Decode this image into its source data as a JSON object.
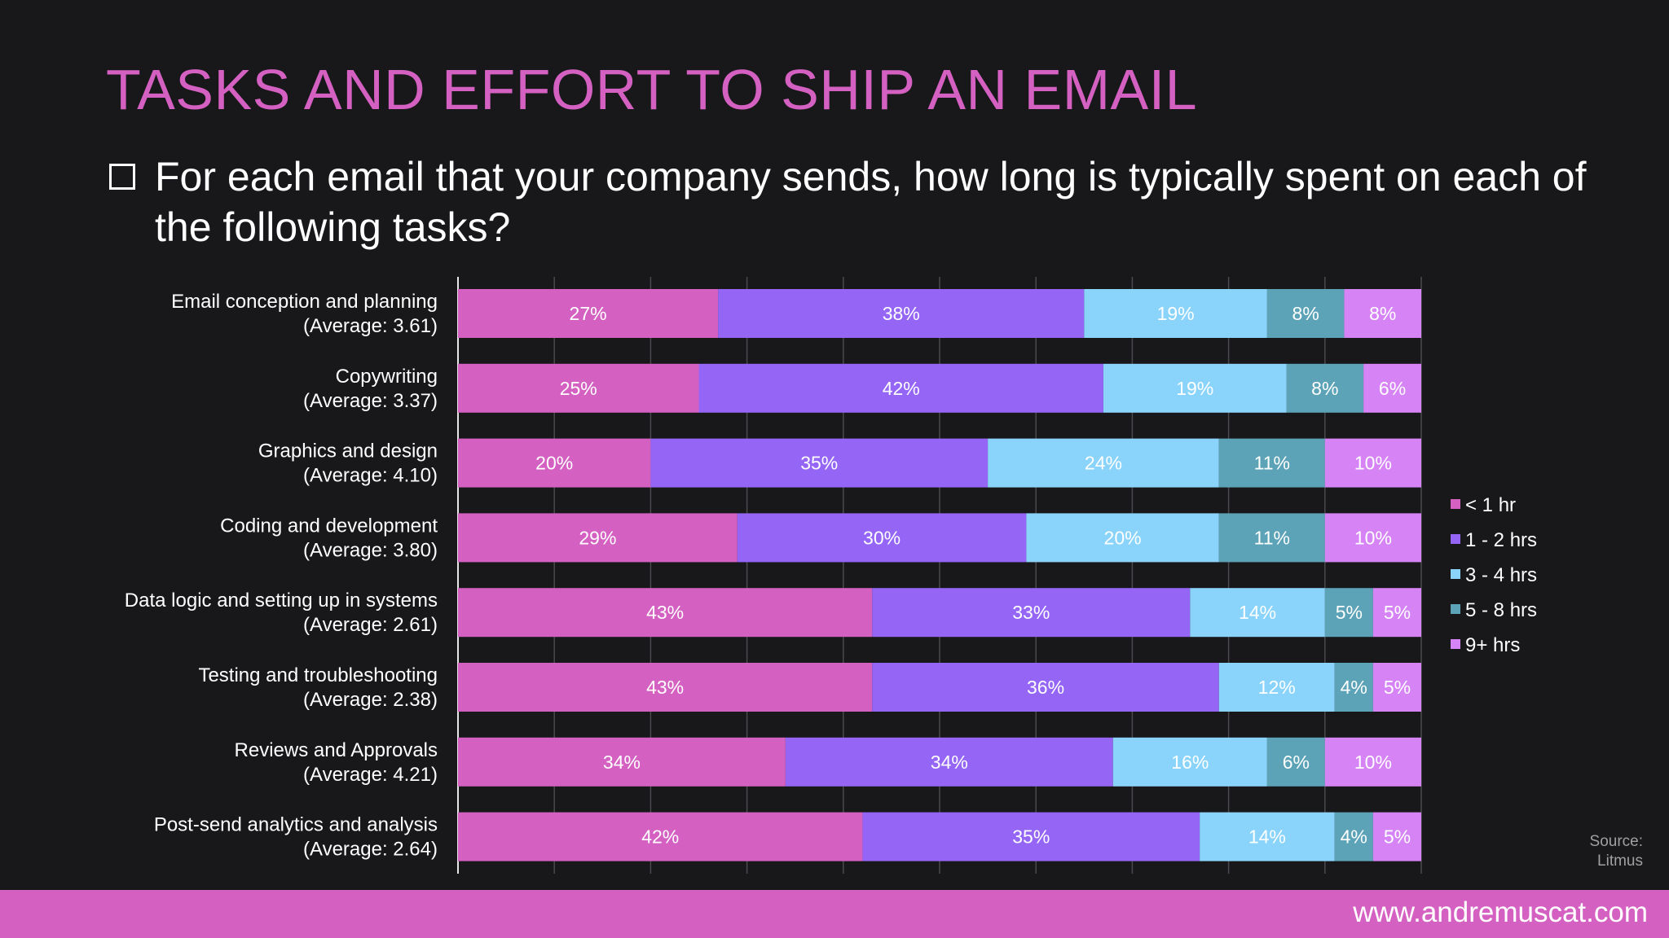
{
  "title": "TASKS AND EFFORT TO SHIP AN EMAIL",
  "subtitle": "For each email that your company sends, how long is typically spent on each of the following tasks?",
  "source": "Source:\nLitmus",
  "footer_url": "www.andremuscat.com",
  "chart_data": {
    "type": "bar",
    "orientation": "horizontal",
    "stacked": true,
    "categories": [
      [
        "Email conception and planning",
        "(Average: 3.61)"
      ],
      [
        "Copywriting",
        "(Average: 3.37)"
      ],
      [
        "Graphics and design",
        "(Average: 4.10)"
      ],
      [
        "Coding and development",
        "(Average: 3.80)"
      ],
      [
        "Data logic and setting up in systems",
        "(Average: 2.61)"
      ],
      [
        "Testing and troubleshooting",
        "(Average: 2.38)"
      ],
      [
        "Reviews and Approvals",
        "(Average: 4.21)"
      ],
      [
        "Post-send analytics and analysis",
        "(Average: 2.64)"
      ]
    ],
    "series": [
      {
        "name": "< 1 hr",
        "color": "#d461c2",
        "values": [
          27,
          25,
          20,
          29,
          43,
          43,
          34,
          42
        ]
      },
      {
        "name": "1 - 2 hrs",
        "color": "#9566f5",
        "values": [
          38,
          42,
          35,
          30,
          33,
          36,
          34,
          35
        ]
      },
      {
        "name": "3 - 4 hrs",
        "color": "#8ad4fc",
        "values": [
          19,
          19,
          24,
          20,
          14,
          12,
          16,
          14
        ]
      },
      {
        "name": "5 - 8 hrs",
        "color": "#5da3b8",
        "values": [
          8,
          8,
          11,
          11,
          5,
          4,
          6,
          4
        ]
      },
      {
        "name": "9+ hrs",
        "color": "#d683f5",
        "values": [
          8,
          6,
          10,
          10,
          5,
          5,
          10,
          5
        ]
      }
    ],
    "xlim": [
      0,
      100
    ],
    "value_suffix": "%",
    "legend_position": "right",
    "grid": true
  }
}
